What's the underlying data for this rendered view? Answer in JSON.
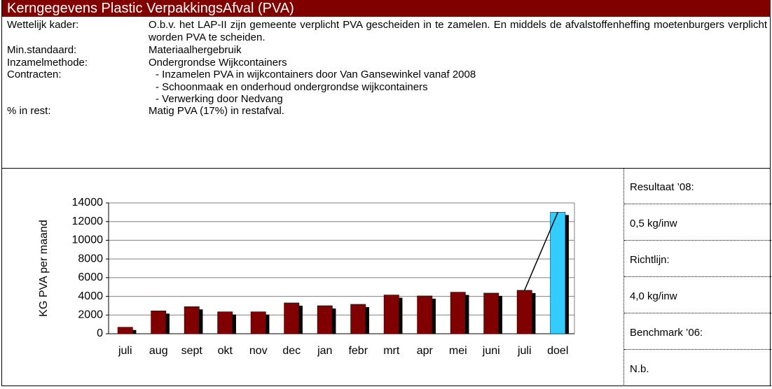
{
  "header": {
    "title": "Kerngegevens Plastic VerpakkingsAfval (PVA)"
  },
  "rows": [
    {
      "label": "Wettelijk kader:",
      "text": "O.b.v. het LAP-II zijn gemeente verplicht PVA gescheiden in te zamelen. En middels de afvalstoffenheffing moetenburgers verplicht worden PVA te scheiden."
    },
    {
      "label": "Min.standaard:",
      "text": "Materiaalhergebruik"
    },
    {
      "label": "Inzamelmethode:",
      "text": "Ondergrondse Wijkcontainers"
    },
    {
      "label": "Contracten:",
      "items": [
        "Inzamelen PVA in wijkcontainers door Van Gansewinkel vanaf 2008",
        "Schoonmaak en onderhoud ondergrondse wijkcontainers",
        "Verwerking door Nedvang"
      ]
    },
    {
      "label": "% in rest:",
      "text": "Matig PVA (17%) in restafval."
    }
  ],
  "side": [
    "Resultaat ’08:",
    "0,5 kg/inw",
    "Richtlijn:",
    "4,0 kg/inw",
    "Benchmark ’06:",
    "N.b."
  ],
  "chart_data": {
    "type": "bar",
    "y_label": "KG PVA per maand",
    "categories": [
      "juli",
      "aug",
      "sept",
      "okt",
      "nov",
      "dec",
      "jan",
      "febr",
      "mrt",
      "apr",
      "mei",
      "juni",
      "juli",
      "doel"
    ],
    "values": [
      700,
      2450,
      2900,
      2350,
      2350,
      3300,
      3000,
      3150,
      4150,
      4050,
      4450,
      4350,
      4650,
      13000
    ],
    "colors": [
      "#800000",
      "#800000",
      "#800000",
      "#800000",
      "#800000",
      "#800000",
      "#800000",
      "#800000",
      "#800000",
      "#800000",
      "#800000",
      "#800000",
      "#800000",
      "#33ccff"
    ],
    "ylim": [
      0,
      14000
    ],
    "yticks": [
      0,
      2000,
      4000,
      6000,
      8000,
      10000,
      12000,
      14000
    ],
    "grid": true
  }
}
